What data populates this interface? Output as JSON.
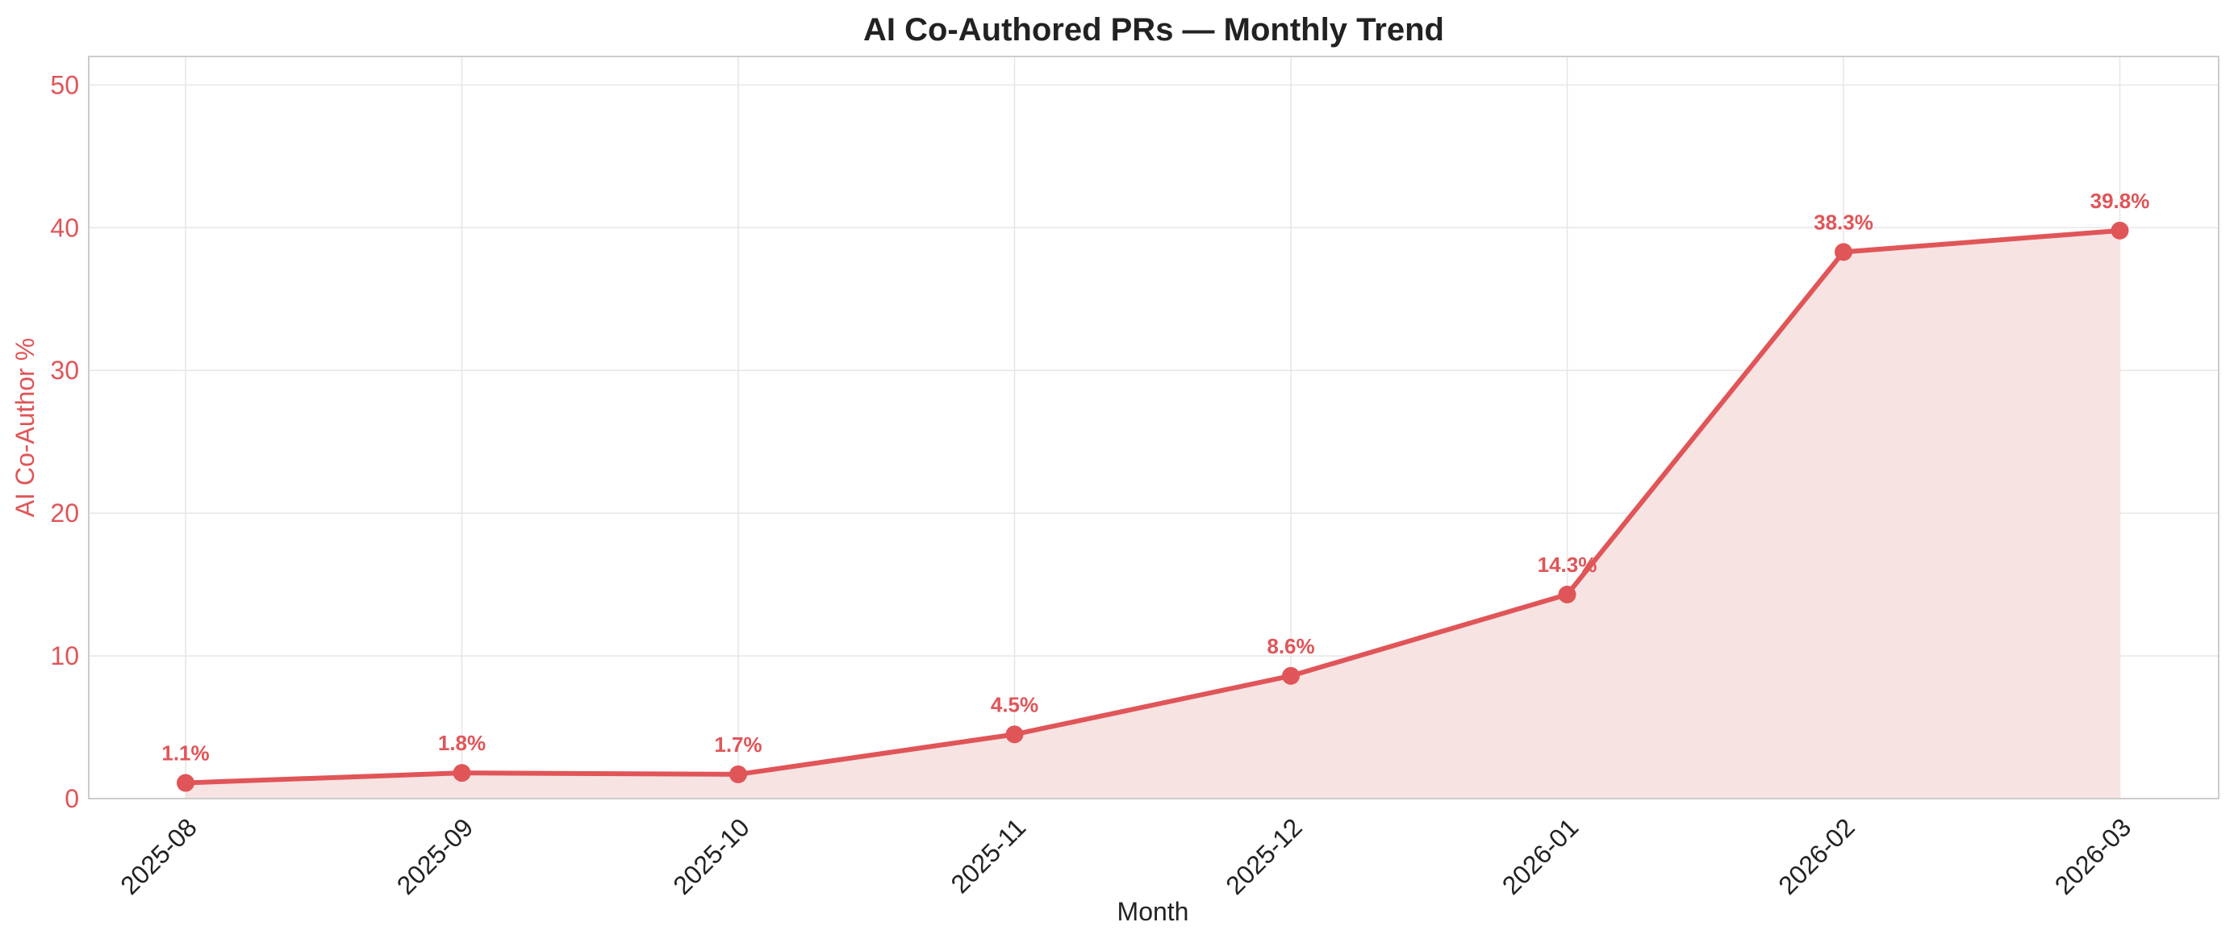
{
  "chart_data": {
    "type": "line",
    "title": "AI Co-Authored PRs — Monthly Trend",
    "xlabel": "Month",
    "ylabel": "AI Co-Author %",
    "categories": [
      "2025-08",
      "2025-09",
      "2025-10",
      "2025-11",
      "2025-12",
      "2026-01",
      "2026-02",
      "2026-03"
    ],
    "values": [
      1.1,
      1.8,
      1.7,
      4.5,
      8.6,
      14.3,
      38.3,
      39.8
    ],
    "data_labels": [
      "1.1%",
      "1.8%",
      "1.7%",
      "4.5%",
      "8.6%",
      "14.3%",
      "38.3%",
      "39.8%"
    ],
    "ylim": [
      0,
      52
    ],
    "yticks": [
      0,
      10,
      20,
      30,
      40,
      50
    ],
    "grid": true,
    "area_fill": true,
    "colors": {
      "line": "#e05558",
      "fill": "#f8e1e2",
      "ytick": "#e05558",
      "ylabel": "#e05558",
      "grid": "#e6e6e6",
      "frame": "#cccccc",
      "text": "#222222"
    }
  }
}
